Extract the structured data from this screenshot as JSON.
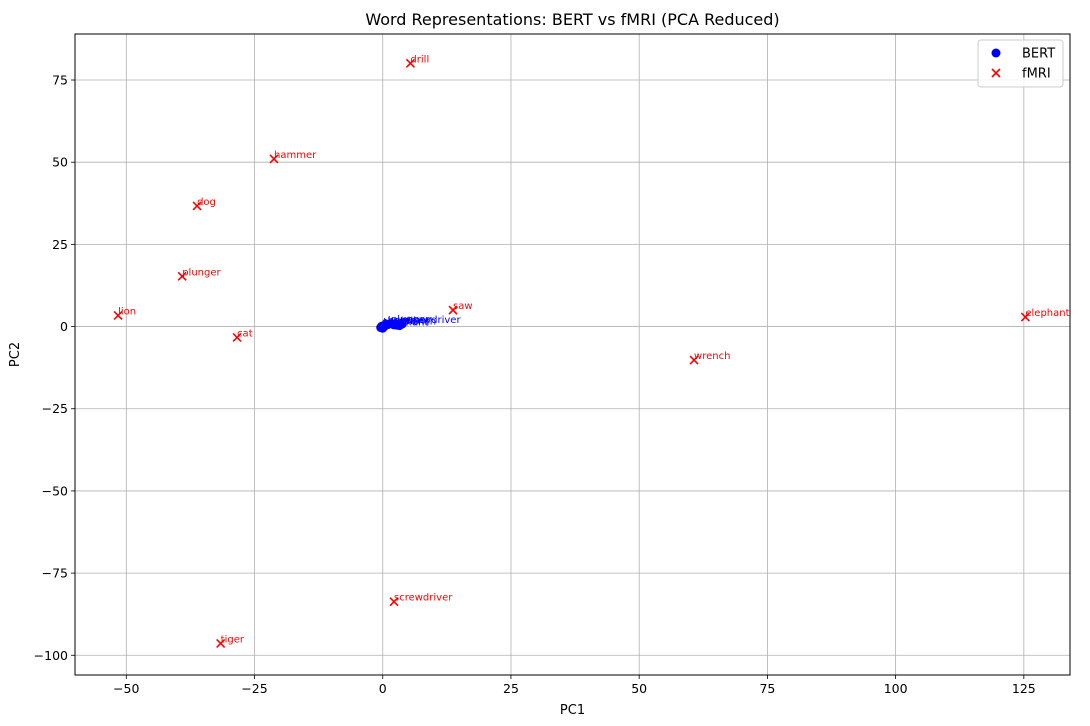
{
  "chart_data": {
    "type": "scatter",
    "title": "Word Representations: BERT vs fMRI (PCA Reduced)",
    "xlabel": "PC1",
    "ylabel": "PC2",
    "xlim": [
      -60,
      134
    ],
    "ylim": [
      -106,
      89
    ],
    "xticks": [
      -50,
      -25,
      0,
      25,
      50,
      75,
      100,
      125
    ],
    "xtick_labels": [
      "−50",
      "−25",
      "0",
      "25",
      "50",
      "75",
      "100",
      "125"
    ],
    "yticks": [
      -100,
      -75,
      -50,
      -25,
      0,
      25,
      50,
      75
    ],
    "ytick_labels": [
      "−100",
      "−75",
      "−50",
      "−25",
      "0",
      "25",
      "50",
      "75"
    ],
    "grid": true,
    "legend_position": "top-right",
    "series": [
      {
        "name": "BERT",
        "marker": "circle",
        "color": "#0000ff",
        "points": [
          {
            "label": "dog",
            "x": -0.4,
            "y": -0.3
          },
          {
            "label": "cat",
            "x": -0.2,
            "y": 0.1
          },
          {
            "label": "lion",
            "x": 0.0,
            "y": -0.5
          },
          {
            "label": "tiger",
            "x": 0.1,
            "y": 0.2
          },
          {
            "label": "elephant",
            "x": 0.3,
            "y": 0.0
          },
          {
            "label": "hammer",
            "x": 1.0,
            "y": 0.6
          },
          {
            "label": "plunger",
            "x": 1.6,
            "y": 0.9
          },
          {
            "label": "saw",
            "x": 2.2,
            "y": 0.5
          },
          {
            "label": "drill",
            "x": 2.8,
            "y": 0.4
          },
          {
            "label": "wrench",
            "x": 3.3,
            "y": 0.3
          },
          {
            "label": "screwdriver",
            "x": 3.8,
            "y": 0.8
          }
        ]
      },
      {
        "name": "fMRI",
        "marker": "x",
        "color": "#ff0000",
        "points": [
          {
            "label": "drill",
            "x": 5.4,
            "y": 80.1
          },
          {
            "label": "hammer",
            "x": -21.2,
            "y": 51.0
          },
          {
            "label": "dog",
            "x": -36.2,
            "y": 36.7
          },
          {
            "label": "plunger",
            "x": -39.1,
            "y": 15.3
          },
          {
            "label": "lion",
            "x": -51.6,
            "y": 3.4
          },
          {
            "label": "saw",
            "x": 13.7,
            "y": 5.0
          },
          {
            "label": "cat",
            "x": -28.4,
            "y": -3.3
          },
          {
            "label": "elephant",
            "x": 125.3,
            "y": 2.9
          },
          {
            "label": "wrench",
            "x": 60.7,
            "y": -10.2
          },
          {
            "label": "screwdriver",
            "x": 2.2,
            "y": -83.7
          },
          {
            "label": "tiger",
            "x": -31.6,
            "y": -96.4
          }
        ]
      }
    ]
  }
}
